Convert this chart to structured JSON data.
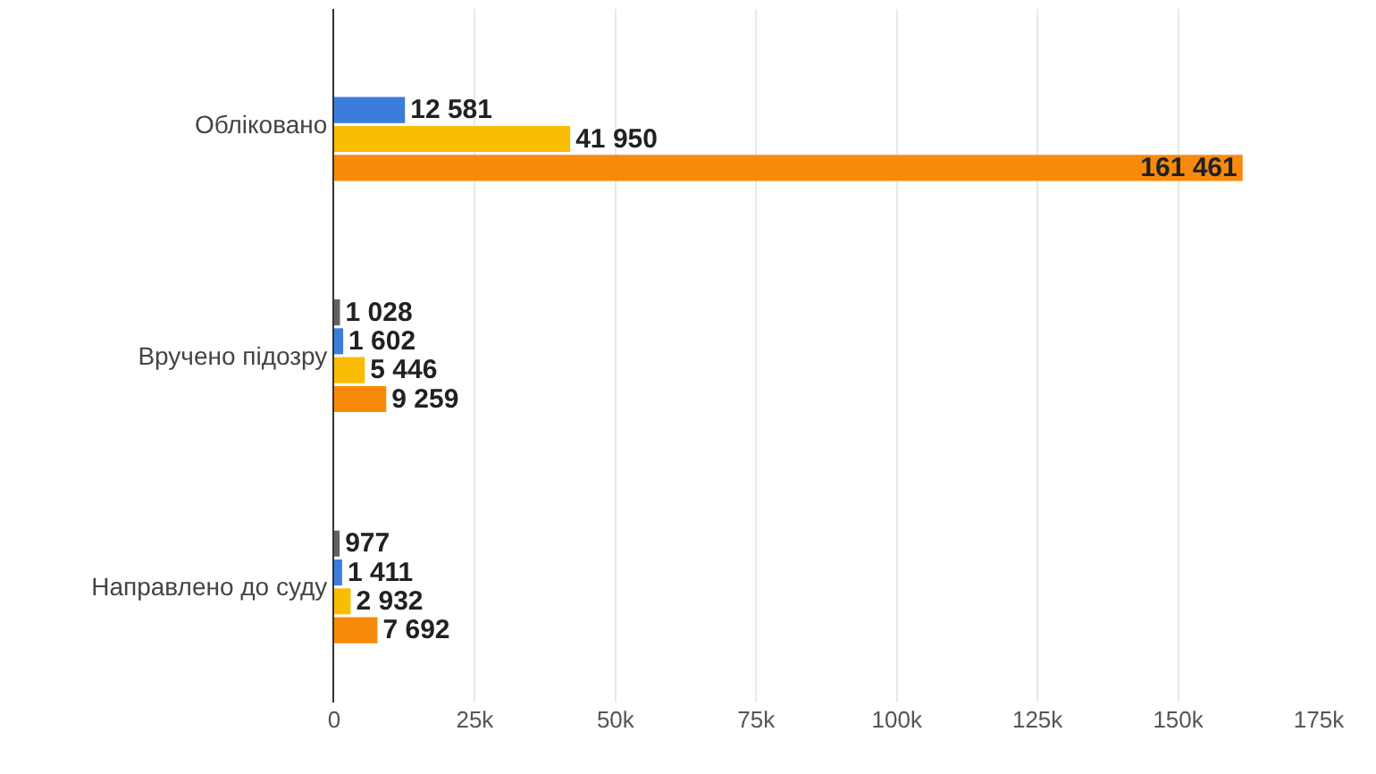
{
  "chart_data": {
    "type": "bar",
    "orientation": "horizontal",
    "categories": [
      "Обліковано",
      "Вручено підозру",
      "Направлено до суду"
    ],
    "series": [
      {
        "color": "#5f6368",
        "values": [
          null,
          1028,
          977
        ],
        "value_labels": [
          null,
          "1 028",
          "977"
        ]
      },
      {
        "color": "#3b7ddd",
        "values": [
          12581,
          1602,
          1411
        ],
        "value_labels": [
          "12 581",
          "1 602",
          "1 411"
        ]
      },
      {
        "color": "#fbbc04",
        "values": [
          41950,
          5446,
          2932
        ],
        "value_labels": [
          "41 950",
          "5 446",
          "2 932"
        ]
      },
      {
        "color": "#f88a0b",
        "values": [
          161461,
          9259,
          7692
        ],
        "value_labels": [
          "161 461",
          "9 259",
          "7 692"
        ]
      }
    ],
    "xlim": [
      0,
      175000
    ],
    "xticks": [
      0,
      {
        "value": 25000,
        "label": "25k"
      },
      {
        "value": 50000,
        "label": "50k"
      },
      {
        "value": 75000,
        "label": "75k"
      },
      {
        "value": 100000,
        "label": "100k"
      },
      {
        "value": 125000,
        "label": "125k"
      },
      {
        "value": 150000,
        "label": "150k"
      },
      {
        "value": 175000,
        "label": "175k"
      }
    ],
    "grid": "x"
  }
}
